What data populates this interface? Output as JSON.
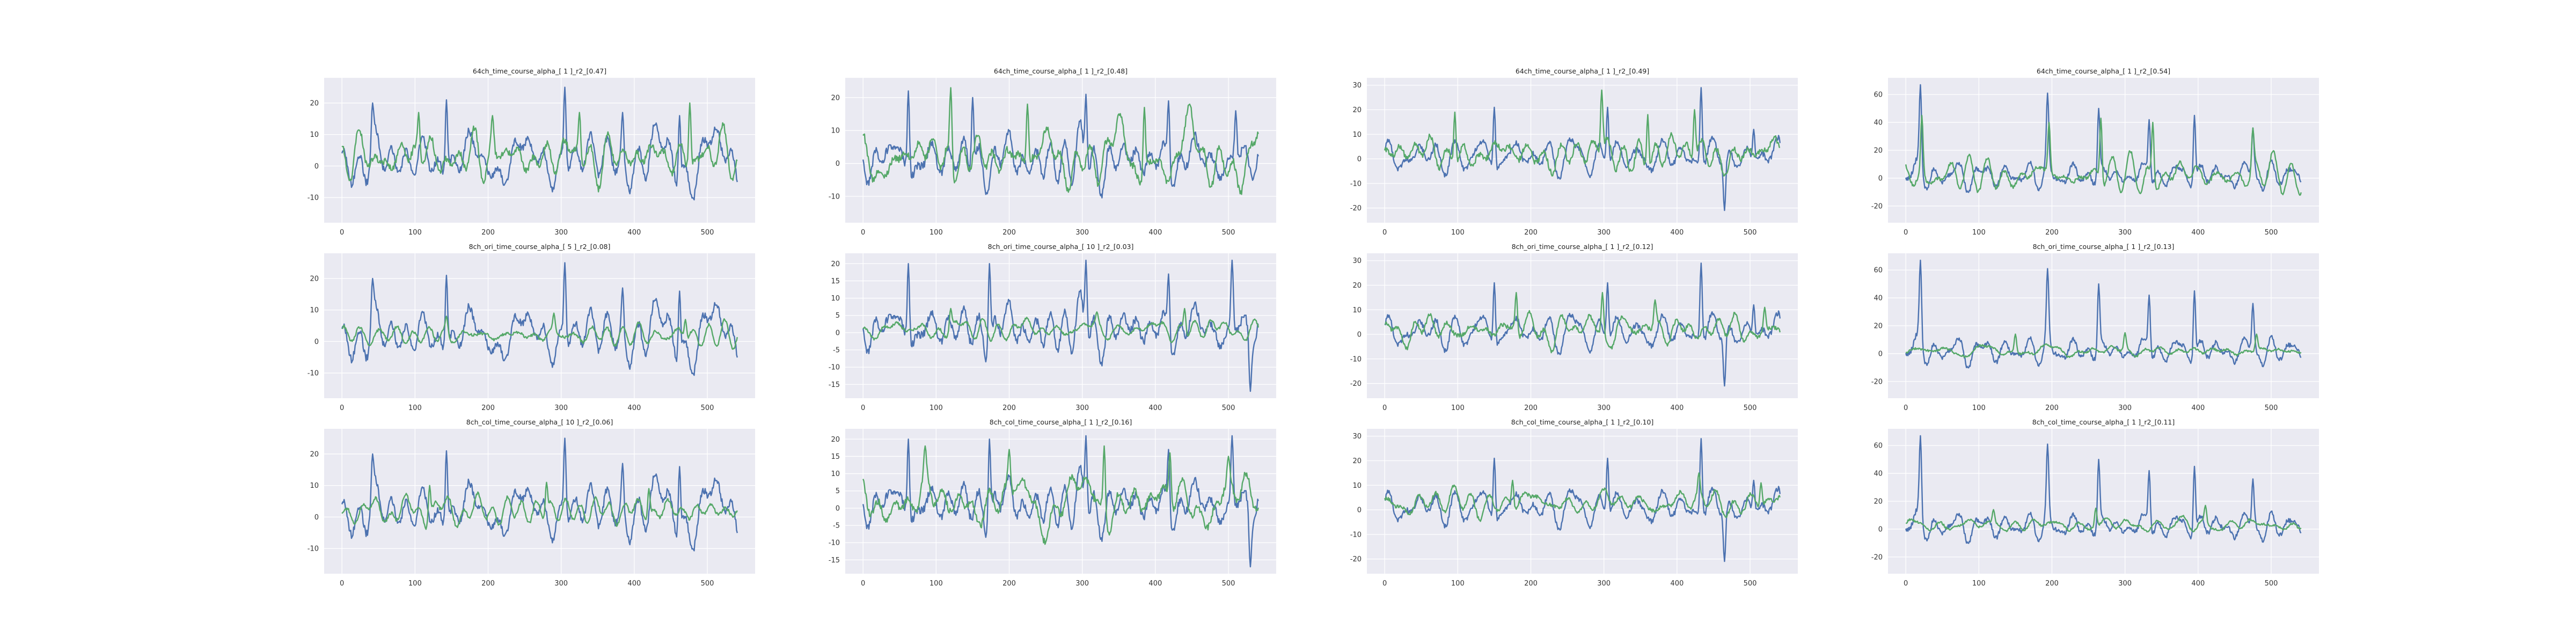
{
  "figure": {
    "rows": 3,
    "cols": 4
  },
  "chart_data": [
    {
      "type": "line",
      "title": "64ch_time_course_alpha_[ 1 ]_r2_[0.47]",
      "x_range": [
        0,
        541
      ],
      "ylim": [
        -18,
        28
      ],
      "xticks": [
        0,
        100,
        200,
        300,
        400,
        500
      ],
      "yticks": [
        -10,
        0,
        10,
        20
      ],
      "grid": true,
      "series": [
        {
          "color": "#4c72b0",
          "center": 2,
          "amp": 6.5,
          "peaks": [
            [
              42,
              20
            ],
            [
              143,
              21
            ],
            [
              305,
              25
            ],
            [
              384,
              17
            ],
            [
              462,
              16
            ]
          ]
        },
        {
          "color": "#55a868",
          "center": 3,
          "amp": 5.5,
          "peaks": [
            [
              105,
              17
            ],
            [
              206,
              16
            ],
            [
              325,
              17
            ],
            [
              476,
              20
            ]
          ]
        }
      ]
    },
    {
      "type": "line",
      "title": "64ch_time_course_alpha_[ 1 ]_r2_[0.48]",
      "x_range": [
        0,
        541
      ],
      "ylim": [
        -18,
        26
      ],
      "xticks": [
        0,
        100,
        200,
        300,
        400,
        500
      ],
      "yticks": [
        -10,
        0,
        10,
        20
      ],
      "grid": true,
      "series": [
        {
          "color": "#4c72b0",
          "center": 1,
          "amp": 7,
          "peaks": [
            [
              62,
              22
            ],
            [
              150,
              20
            ],
            [
              305,
              21
            ],
            [
              418,
              19
            ],
            [
              510,
              16
            ]
          ]
        },
        {
          "color": "#55a868",
          "center": 2,
          "amp": 6,
          "peaks": [
            [
              120,
              23
            ],
            [
              225,
              18
            ],
            [
              385,
              17
            ],
            [
              447,
              18
            ]
          ]
        }
      ]
    },
    {
      "type": "line",
      "title": "64ch_time_course_alpha_[ 1 ]_r2_[0.49]",
      "x_range": [
        0,
        541
      ],
      "ylim": [
        -26,
        33
      ],
      "xticks": [
        0,
        100,
        200,
        300,
        400,
        500
      ],
      "yticks": [
        -20,
        -10,
        0,
        10,
        20,
        30
      ],
      "grid": true,
      "series": [
        {
          "color": "#4c72b0",
          "center": 1,
          "amp": 6,
          "peaks": [
            [
              150,
              21
            ],
            [
              305,
              21
            ],
            [
              433,
              29
            ],
            [
              465,
              -21
            ],
            [
              505,
              12
            ]
          ]
        },
        {
          "color": "#55a868",
          "center": 2,
          "amp": 6.5,
          "peaks": [
            [
              96,
              19
            ],
            [
              297,
              28
            ],
            [
              360,
              18
            ],
            [
              424,
              20
            ]
          ]
        }
      ]
    },
    {
      "type": "line",
      "title": "64ch_time_course_alpha_[ 1 ]_r2_[0.54]",
      "x_range": [
        0,
        541
      ],
      "ylim": [
        -32,
        72
      ],
      "xticks": [
        0,
        100,
        200,
        300,
        400,
        500
      ],
      "yticks": [
        -20,
        0,
        20,
        40,
        60
      ],
      "grid": true,
      "series": [
        {
          "color": "#4c72b0",
          "center": 2,
          "amp": 9,
          "peaks": [
            [
              20,
              67
            ],
            [
              194,
              61
            ],
            [
              264,
              50
            ],
            [
              333,
              42
            ],
            [
              395,
              45
            ],
            [
              475,
              36
            ]
          ]
        },
        {
          "color": "#55a868",
          "center": 2,
          "amp": 7,
          "peaks": [
            [
              22,
              45
            ],
            [
              196,
              40
            ],
            [
              267,
              43
            ],
            [
              338,
              40
            ],
            [
              475,
              36
            ]
          ]
        }
      ]
    },
    {
      "type": "line",
      "title": "8ch_ori_time_course_alpha_[ 5 ]_r2_[0.08]",
      "x_range": [
        0,
        541
      ],
      "ylim": [
        -18,
        28
      ],
      "xticks": [
        0,
        100,
        200,
        300,
        400,
        500
      ],
      "yticks": [
        -10,
        0,
        10,
        20
      ],
      "grid": true,
      "series": [
        {
          "color": "#4c72b0",
          "center": 2,
          "amp": 6.5,
          "peaks": [
            [
              42,
              20
            ],
            [
              143,
              21
            ],
            [
              305,
              25
            ],
            [
              384,
              17
            ],
            [
              462,
              16
            ]
          ]
        },
        {
          "color": "#55a868",
          "center": 2,
          "amp": 2.5,
          "peaks": [
            [
              143,
              8
            ],
            [
              290,
              9
            ],
            [
              470,
              7
            ]
          ]
        }
      ]
    },
    {
      "type": "line",
      "title": "8ch_ori_time_course_alpha_[ 10 ]_r2_[0.03]",
      "x_range": [
        0,
        541
      ],
      "ylim": [
        -19,
        23
      ],
      "xticks": [
        0,
        100,
        200,
        300,
        400,
        500
      ],
      "yticks": [
        -15,
        -10,
        -5,
        0,
        5,
        10,
        15,
        20
      ],
      "grid": true,
      "series": [
        {
          "color": "#4c72b0",
          "center": 1,
          "amp": 6.5,
          "peaks": [
            [
              62,
              20
            ],
            [
              173,
              20
            ],
            [
              305,
              21
            ],
            [
              418,
              17
            ],
            [
              505,
              21
            ],
            [
              530,
              -17
            ]
          ]
        },
        {
          "color": "#55a868",
          "center": 1,
          "amp": 2,
          "peaks": [
            [
              120,
              7
            ],
            [
              320,
              6
            ],
            [
              440,
              7
            ]
          ]
        }
      ]
    },
    {
      "type": "line",
      "title": "8ch_ori_time_course_alpha_[ 1 ]_r2_[0.12]",
      "x_range": [
        0,
        541
      ],
      "ylim": [
        -26,
        33
      ],
      "xticks": [
        0,
        100,
        200,
        300,
        400,
        500
      ],
      "yticks": [
        -20,
        -10,
        0,
        10,
        20,
        30
      ],
      "grid": true,
      "series": [
        {
          "color": "#4c72b0",
          "center": 1,
          "amp": 6,
          "peaks": [
            [
              150,
              21
            ],
            [
              305,
              21
            ],
            [
              433,
              29
            ],
            [
              465,
              -21
            ],
            [
              505,
              12
            ]
          ]
        },
        {
          "color": "#55a868",
          "center": 2,
          "amp": 4.5,
          "peaks": [
            [
              180,
              17
            ],
            [
              298,
              17
            ],
            [
              370,
              14
            ],
            [
              520,
              11
            ]
          ]
        }
      ]
    },
    {
      "type": "line",
      "title": "8ch_ori_time_course_alpha_[ 1 ]_r2_[0.13]",
      "x_range": [
        0,
        541
      ],
      "ylim": [
        -32,
        72
      ],
      "xticks": [
        0,
        100,
        200,
        300,
        400,
        500
      ],
      "yticks": [
        -20,
        0,
        20,
        40,
        60
      ],
      "grid": true,
      "series": [
        {
          "color": "#4c72b0",
          "center": 2,
          "amp": 9,
          "peaks": [
            [
              20,
              67
            ],
            [
              194,
              61
            ],
            [
              264,
              50
            ],
            [
              333,
              42
            ],
            [
              395,
              45
            ],
            [
              475,
              36
            ]
          ]
        },
        {
          "color": "#55a868",
          "center": 2,
          "amp": 4,
          "peaks": [
            [
              150,
              14
            ],
            [
              300,
              15
            ],
            [
              480,
              14
            ]
          ]
        }
      ]
    },
    {
      "type": "line",
      "title": "8ch_col_time_course_alpha_[ 10 ]_r2_[0.06]",
      "x_range": [
        0,
        541
      ],
      "ylim": [
        -18,
        28
      ],
      "xticks": [
        0,
        100,
        200,
        300,
        400,
        500
      ],
      "yticks": [
        -10,
        0,
        10,
        20
      ],
      "grid": true,
      "series": [
        {
          "color": "#4c72b0",
          "center": 2,
          "amp": 6.5,
          "peaks": [
            [
              42,
              20
            ],
            [
              143,
              21
            ],
            [
              305,
              25
            ],
            [
              384,
              17
            ],
            [
              462,
              16
            ]
          ]
        },
        {
          "color": "#55a868",
          "center": 2,
          "amp": 3,
          "peaks": [
            [
              120,
              10
            ],
            [
              280,
              11
            ],
            [
              420,
              9
            ]
          ]
        }
      ]
    },
    {
      "type": "line",
      "title": "8ch_col_time_course_alpha_[ 1 ]_r2_[0.16]",
      "x_range": [
        0,
        541
      ],
      "ylim": [
        -19,
        23
      ],
      "xticks": [
        0,
        100,
        200,
        300,
        400,
        500
      ],
      "yticks": [
        -15,
        -10,
        -5,
        0,
        5,
        10,
        15,
        20
      ],
      "grid": true,
      "series": [
        {
          "color": "#4c72b0",
          "center": 1,
          "amp": 6.5,
          "peaks": [
            [
              62,
              20
            ],
            [
              173,
              20
            ],
            [
              305,
              21
            ],
            [
              418,
              17
            ],
            [
              505,
              21
            ],
            [
              530,
              -17
            ]
          ]
        },
        {
          "color": "#55a868",
          "center": 2,
          "amp": 5.5,
          "peaks": [
            [
              85,
              18
            ],
            [
              200,
              17
            ],
            [
              330,
              18
            ],
            [
              420,
              16
            ],
            [
              500,
              15
            ]
          ]
        }
      ]
    },
    {
      "type": "line",
      "title": "8ch_col_time_course_alpha_[ 1 ]_r2_[0.10]",
      "x_range": [
        0,
        541
      ],
      "ylim": [
        -26,
        33
      ],
      "xticks": [
        0,
        100,
        200,
        300,
        400,
        500
      ],
      "yticks": [
        -20,
        -10,
        0,
        10,
        20,
        30
      ],
      "grid": true,
      "series": [
        {
          "color": "#4c72b0",
          "center": 1,
          "amp": 6,
          "peaks": [
            [
              150,
              21
            ],
            [
              305,
              21
            ],
            [
              433,
              29
            ],
            [
              465,
              -21
            ],
            [
              505,
              12
            ]
          ]
        },
        {
          "color": "#55a868",
          "center": 3,
          "amp": 4,
          "peaks": [
            [
              175,
              12
            ],
            [
              430,
              15
            ],
            [
              515,
              11
            ]
          ]
        }
      ]
    },
    {
      "type": "line",
      "title": "8ch_col_time_course_alpha_[ 1 ]_r2_[0.11]",
      "x_range": [
        0,
        541
      ],
      "ylim": [
        -32,
        72
      ],
      "xticks": [
        0,
        100,
        200,
        300,
        400,
        500
      ],
      "yticks": [
        -20,
        0,
        20,
        40,
        60
      ],
      "grid": true,
      "series": [
        {
          "color": "#4c72b0",
          "center": 2,
          "amp": 9,
          "peaks": [
            [
              20,
              67
            ],
            [
              194,
              61
            ],
            [
              264,
              50
            ],
            [
              333,
              42
            ],
            [
              395,
              45
            ],
            [
              475,
              36
            ]
          ]
        },
        {
          "color": "#55a868",
          "center": 3,
          "amp": 4,
          "peaks": [
            [
              120,
              14
            ],
            [
              260,
              15
            ],
            [
              410,
              17
            ]
          ]
        }
      ]
    }
  ]
}
